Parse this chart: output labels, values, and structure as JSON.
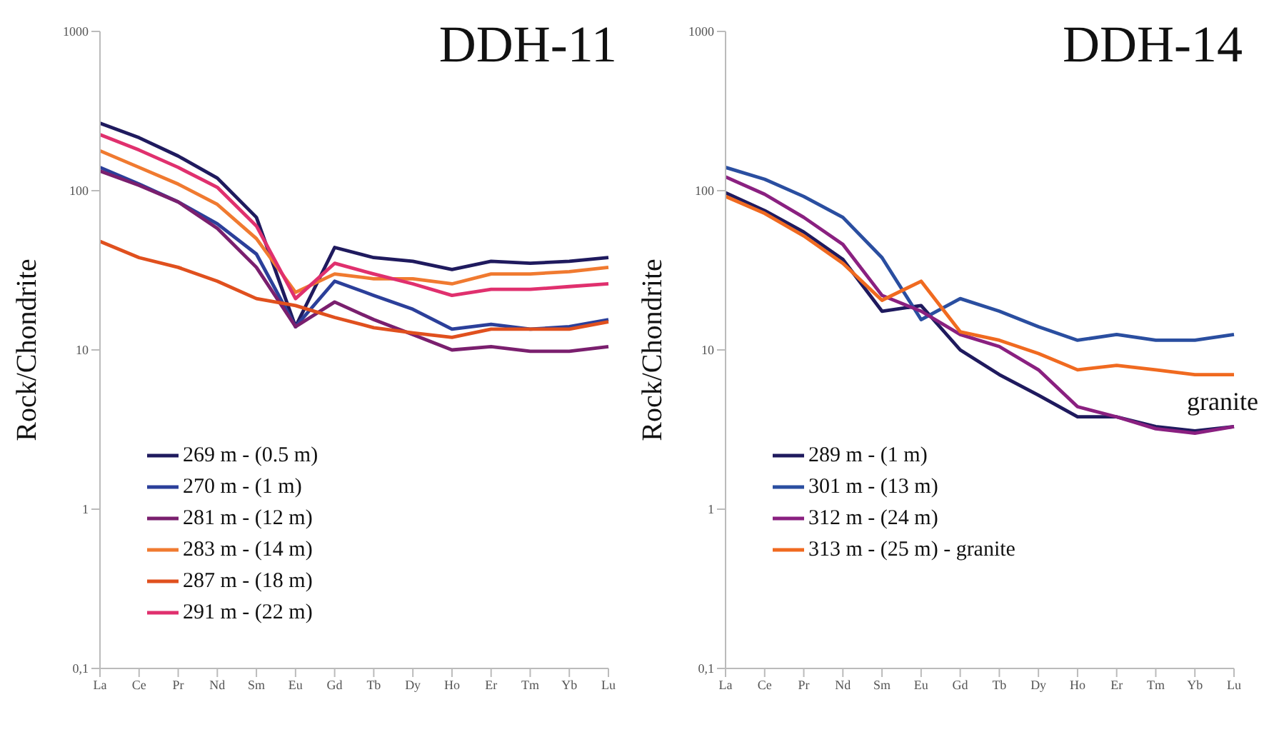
{
  "chart_data": [
    {
      "type": "line",
      "title": "DDH-11",
      "ylabel": "Rock/Chondrite",
      "categories": [
        "La",
        "Ce",
        "Pr",
        "Nd",
        "Sm",
        "Eu",
        "Gd",
        "Tb",
        "Dy",
        "Ho",
        "Er",
        "Tm",
        "Yb",
        "Lu"
      ],
      "log": "y",
      "ylim": [
        0.1,
        1000
      ],
      "yticks": [
        {
          "value": 0.1,
          "label": "0,1"
        },
        1,
        10,
        100,
        1000
      ],
      "grid": false,
      "legend": "bottom left",
      "marker": "none",
      "line_style": "solid",
      "series": [
        {
          "name": "269 m - (0.5 m)",
          "color": "#1f1a5e",
          "values": [
            265,
            215,
            165,
            120,
            68,
            14,
            44,
            38,
            36,
            32,
            36,
            35,
            36,
            38
          ]
        },
        {
          "name": "270 m - (1 m)",
          "color": "#2b3f9a",
          "values": [
            140,
            110,
            85,
            62,
            40,
            14,
            27,
            22,
            18,
            13.5,
            14.5,
            13.5,
            14,
            15.5
          ]
        },
        {
          "name": "281 m - (12 m)",
          "color": "#7a1f6e",
          "values": [
            133,
            108,
            85,
            58,
            33,
            14,
            20,
            15.5,
            12.5,
            10,
            10.5,
            9.8,
            9.8,
            10.5
          ]
        },
        {
          "name": "283 m - (14 m)",
          "color": "#f07a30",
          "values": [
            178,
            140,
            110,
            82,
            50,
            23,
            30,
            28,
            28,
            26,
            30,
            30,
            31,
            33
          ]
        },
        {
          "name": "287 m - (18 m)",
          "color": "#e0501e",
          "values": [
            48,
            38,
            33,
            27,
            21,
            19,
            16,
            13.8,
            12.8,
            12,
            13.5,
            13.5,
            13.5,
            15
          ]
        },
        {
          "name": "291 m - (22 m)",
          "color": "#e0306e",
          "values": [
            225,
            180,
            140,
            105,
            60,
            21,
            35,
            30,
            26,
            22,
            24,
            24,
            25,
            26
          ]
        }
      ]
    },
    {
      "type": "line",
      "title": "DDH-14",
      "ylabel": "Rock/Chondrite",
      "categories": [
        "La",
        "Ce",
        "Pr",
        "Nd",
        "Sm",
        "Eu",
        "Gd",
        "Tb",
        "Dy",
        "Ho",
        "Er",
        "Tm",
        "Yb",
        "Lu"
      ],
      "log": "y",
      "ylim": [
        0.1,
        1000
      ],
      "yticks": [
        {
          "value": 0.1,
          "label": "0,1"
        },
        1,
        10,
        100,
        1000
      ],
      "grid": false,
      "legend": "bottom left",
      "marker": "none",
      "line_style": "solid",
      "annotations": [
        {
          "text": "granite",
          "x": "Lu",
          "y": 7
        }
      ],
      "series": [
        {
          "name": "289 m - (1 m)",
          "color": "#1f1a5e",
          "values": [
            97,
            75,
            55,
            37,
            17.5,
            19,
            10,
            7,
            5.2,
            3.8,
            3.8,
            3.3,
            3.1,
            3.3
          ]
        },
        {
          "name": "301 m - (13 m)",
          "color": "#2a4ea0",
          "values": [
            140,
            118,
            92,
            68,
            38,
            15.5,
            21,
            17.5,
            14,
            11.5,
            12.5,
            11.5,
            11.5,
            12.5
          ]
        },
        {
          "name": "312 m - (24 m)",
          "color": "#8a2080",
          "values": [
            122,
            95,
            68,
            46,
            22,
            17.5,
            12.5,
            10.5,
            7.5,
            4.4,
            3.8,
            3.2,
            3.0,
            3.3
          ]
        },
        {
          "name": "313 m - (25 m) - granite",
          "color": "#f06a20",
          "values": [
            92,
            72,
            52,
            35,
            20.5,
            27,
            13,
            11.5,
            9.5,
            7.5,
            8,
            7.5,
            7,
            7
          ]
        }
      ]
    }
  ]
}
